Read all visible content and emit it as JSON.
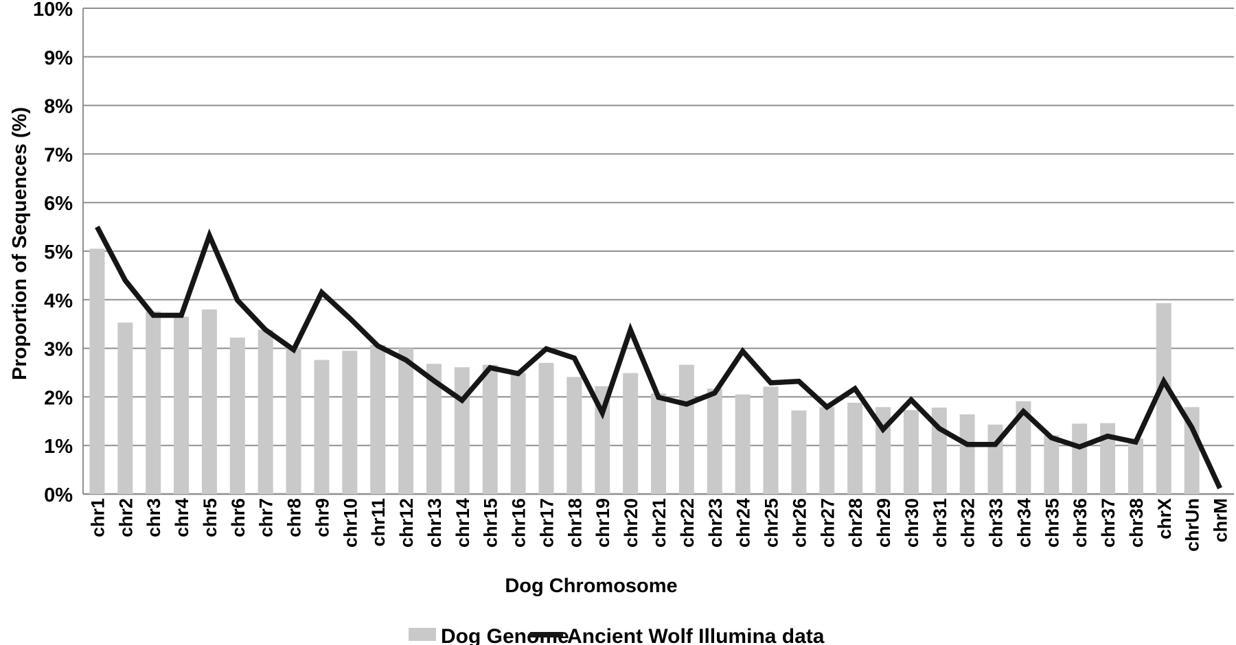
{
  "figure": {
    "y_axis_title": "Proportion of Sequences (%)",
    "x_axis_title": "Dog Chromosome"
  },
  "colors": {
    "bar_fill": "#c9c9c9",
    "line_stroke": "#161616",
    "gridline": "#8f8f8f",
    "axis_line": "#7a7a7a",
    "text": "#000000"
  },
  "legend": {
    "items": [
      {
        "label": "Dog Genome",
        "type": "bar-swatch",
        "color": "#c9c9c9"
      },
      {
        "label": "Ancient Wolf Illumina data",
        "type": "line-swatch",
        "color": "#161616"
      }
    ]
  },
  "chart_data": {
    "type": "bar",
    "combo": "bar+line",
    "title": "",
    "xlabel": "Dog Chromosome",
    "ylabel": "Proportion of Sequences (%)",
    "ylim": [
      0,
      10
    ],
    "ytick_labels": [
      "0%",
      "1%",
      "2%",
      "3%",
      "4%",
      "5%",
      "6%",
      "7%",
      "8%",
      "9%",
      "10%"
    ],
    "grid": "horizontal",
    "legend_position": "bottom",
    "categories": [
      "chr1",
      "chr2",
      "chr3",
      "chr4",
      "chr5",
      "chr6",
      "chr7",
      "chr8",
      "chr9",
      "chr10",
      "chr11",
      "chr12",
      "chr13",
      "chr14",
      "chr15",
      "chr16",
      "chr17",
      "chr18",
      "chr19",
      "chr20",
      "chr21",
      "chr22",
      "chr23",
      "chr24",
      "chr25",
      "chr26",
      "chr27",
      "chr28",
      "chr29",
      "chr30",
      "chr31",
      "chr32",
      "chr33",
      "chr34",
      "chr35",
      "chr36",
      "chr37",
      "chr38",
      "chrX",
      "chrUn",
      "chrM"
    ],
    "series": [
      {
        "name": "Dog Genome",
        "type": "bar",
        "color": "#c9c9c9",
        "values": [
          5.05,
          3.53,
          3.76,
          3.65,
          3.8,
          3.22,
          3.38,
          3.02,
          2.76,
          2.95,
          3.07,
          3.0,
          2.68,
          2.61,
          2.66,
          2.5,
          2.7,
          2.41,
          2.22,
          2.49,
          2.07,
          2.66,
          2.17,
          2.05,
          2.21,
          1.72,
          1.79,
          1.88,
          1.79,
          1.73,
          1.78,
          1.64,
          1.43,
          1.91,
          1.21,
          1.45,
          1.46,
          1.14,
          3.93,
          1.79,
          0.0
        ]
      },
      {
        "name": "Ancient Wolf Illumina data",
        "type": "line",
        "color": "#161616",
        "values": [
          5.5,
          4.4,
          3.68,
          3.68,
          5.32,
          3.99,
          3.38,
          2.97,
          4.15,
          3.62,
          3.05,
          2.76,
          2.33,
          1.93,
          2.6,
          2.48,
          2.99,
          2.8,
          1.67,
          3.38,
          1.99,
          1.85,
          2.08,
          2.94,
          2.29,
          2.32,
          1.79,
          2.17,
          1.33,
          1.94,
          1.35,
          1.02,
          1.02,
          1.7,
          1.16,
          0.97,
          1.19,
          1.07,
          2.32,
          1.37,
          0.12
        ]
      }
    ]
  }
}
